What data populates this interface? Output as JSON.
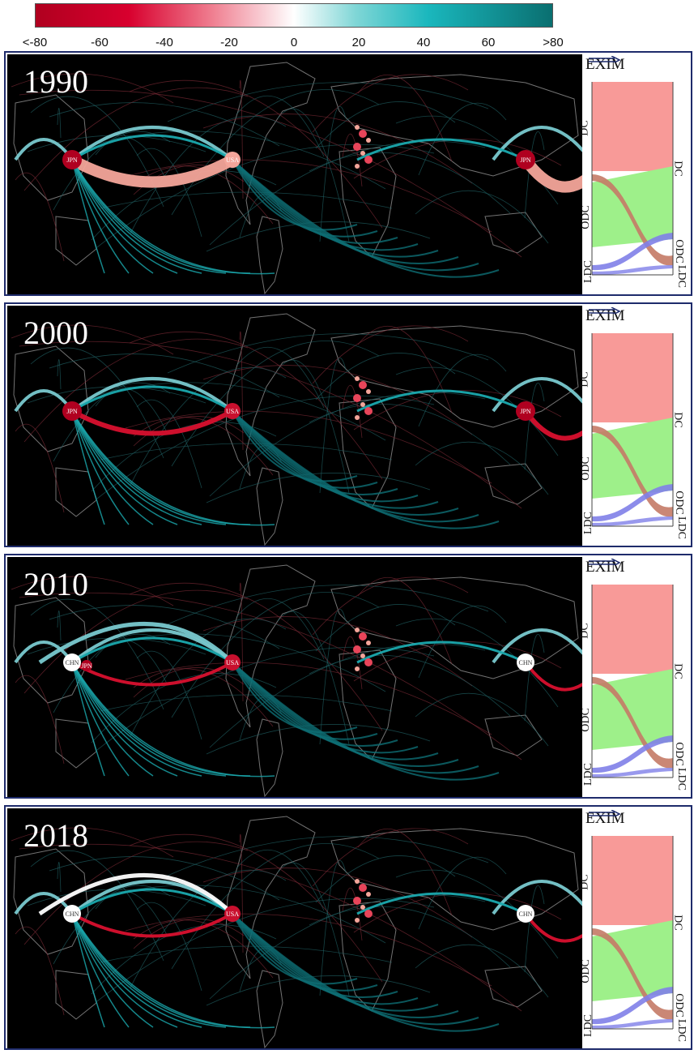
{
  "legend": {
    "ticks": [
      "<-80",
      "-60",
      "-40",
      "-20",
      "0",
      "20",
      "40",
      "60",
      ">80"
    ],
    "colors": {
      "negative": "#d8002e",
      "neutral": "#ffffff",
      "positive": "#1ab7bd"
    }
  },
  "panels": [
    {
      "year": "1990",
      "nodes": {
        "left_hub": "JPN",
        "mid_hub": "USA",
        "right_hub": "JPN"
      },
      "sankey": {
        "ex_label": "EX",
        "im_label": "IM",
        "left_labels": [
          "DC",
          "ODC",
          "LDC"
        ],
        "right_labels": [
          "DC",
          "ODC",
          "LDC"
        ]
      }
    },
    {
      "year": "2000",
      "nodes": {
        "left_hub": "JPN",
        "mid_hub": "USA",
        "right_hub": "JPN"
      },
      "sankey": {
        "ex_label": "EX",
        "im_label": "IM",
        "left_labels": [
          "DC",
          "ODC",
          "LDC"
        ],
        "right_labels": [
          "DC",
          "ODC",
          "LDC"
        ]
      }
    },
    {
      "year": "2010",
      "nodes": {
        "left_hub": "CHN",
        "left_hub2": "JPN",
        "mid_hub": "USA",
        "right_hub": "CHN"
      },
      "sankey": {
        "ex_label": "EX",
        "im_label": "IM",
        "left_labels": [
          "DC",
          "ODC",
          "LDC"
        ],
        "right_labels": [
          "DC",
          "ODC",
          "LDC"
        ]
      }
    },
    {
      "year": "2018",
      "nodes": {
        "left_hub": "CHN",
        "mid_hub": "USA",
        "right_hub": "CHN"
      },
      "sankey": {
        "ex_label": "EX",
        "im_label": "IM",
        "left_labels": [
          "DC",
          "ODC",
          "LDC"
        ],
        "right_labels": [
          "DC",
          "ODC",
          "LDC"
        ]
      }
    }
  ]
}
